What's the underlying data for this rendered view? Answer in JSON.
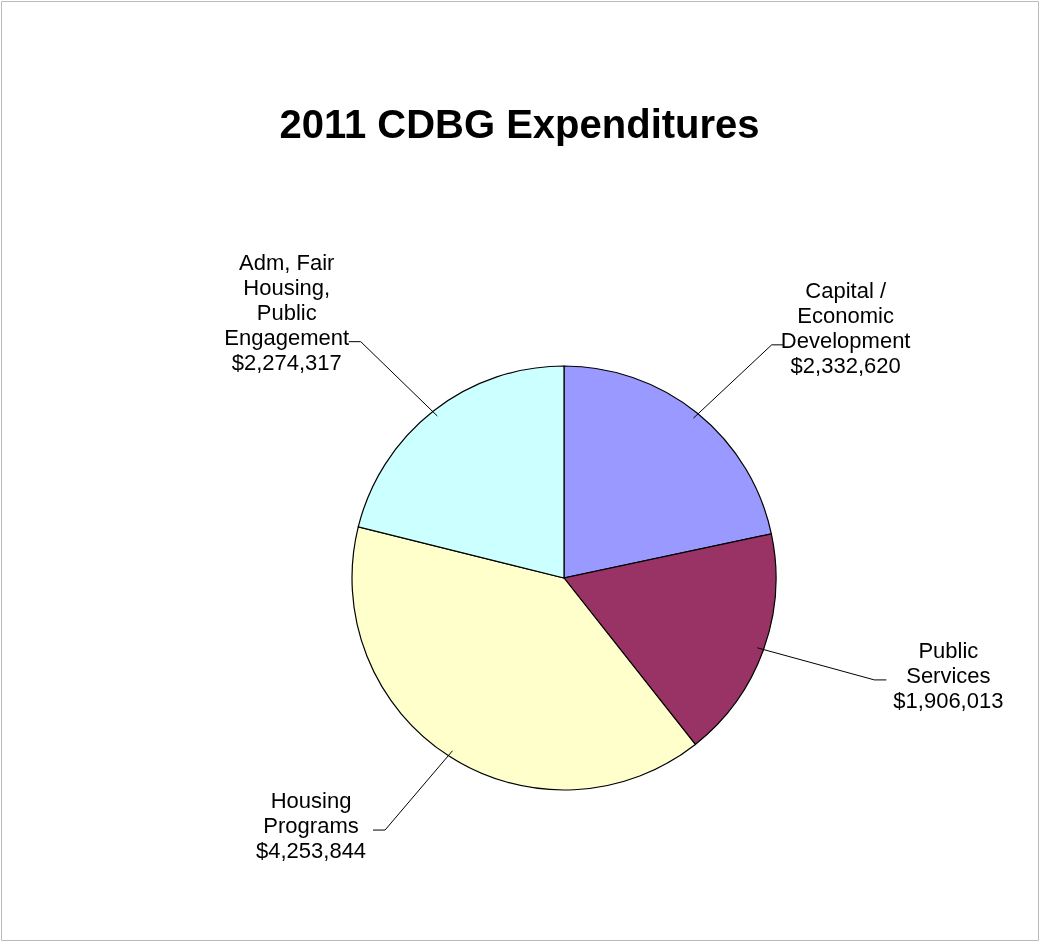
{
  "chart_data": {
    "type": "pie",
    "title": "2011 CDBG Expenditures",
    "categories": [
      "Capital / Economic Development",
      "Public Services",
      "Housing Programs",
      "Adm, Fair Housing, Public Engagement"
    ],
    "values": [
      2332620,
      1906013,
      4253844,
      2274317
    ],
    "colors": [
      "#9999ff",
      "#993366",
      "#ffffcc",
      "#ccffff"
    ],
    "value_labels": [
      "$2,332,620",
      "$1,906,013",
      "$4,253,844",
      "$2,274,317"
    ],
    "legend": false
  }
}
